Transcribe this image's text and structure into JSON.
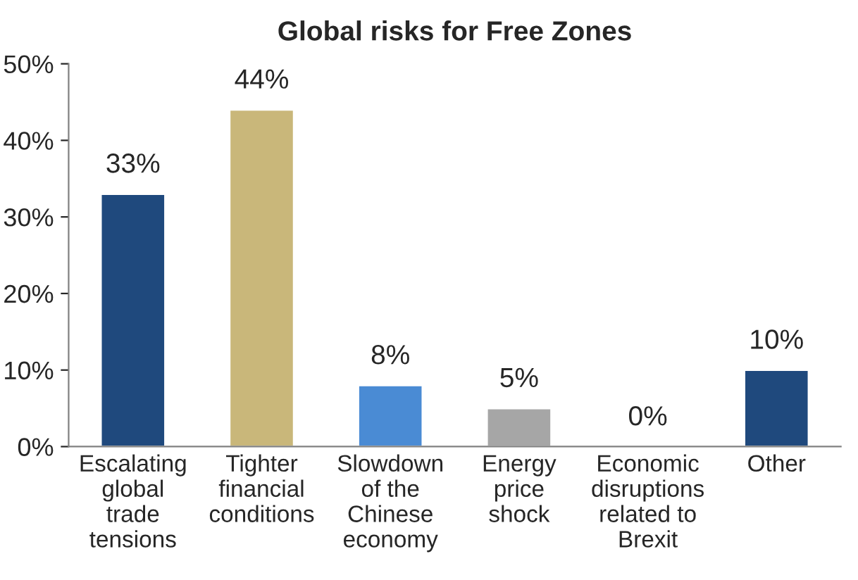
{
  "chart_data": {
    "type": "bar",
    "title": "Global risks for Free Zones",
    "categories": [
      "Escalating\nglobal\ntrade\ntensions",
      "Tighter\nfinancial\nconditions",
      "Slowdown\nof the\nChinese\neconomy",
      "Energy\nprice\nshock",
      "Economic\ndisruptions\nrelated to\nBrexit",
      "Other"
    ],
    "values": [
      33,
      44,
      8,
      5,
      0,
      10
    ],
    "value_labels": [
      "33%",
      "44%",
      "8%",
      "5%",
      "0%",
      "10%"
    ],
    "colors": [
      "#1f497d",
      "#c9b77a",
      "#4a8bd4",
      "#a6a6a6",
      null,
      "#1f497d"
    ],
    "ylim": [
      0,
      50
    ],
    "yticks": [
      {
        "value": 0,
        "label": "0%"
      },
      {
        "value": 10,
        "label": "10%"
      },
      {
        "value": 20,
        "label": "20%"
      },
      {
        "value": 30,
        "label": "30%"
      },
      {
        "value": 40,
        "label": "40%"
      },
      {
        "value": 50,
        "label": "50%"
      }
    ],
    "grid": false,
    "legend": false
  }
}
